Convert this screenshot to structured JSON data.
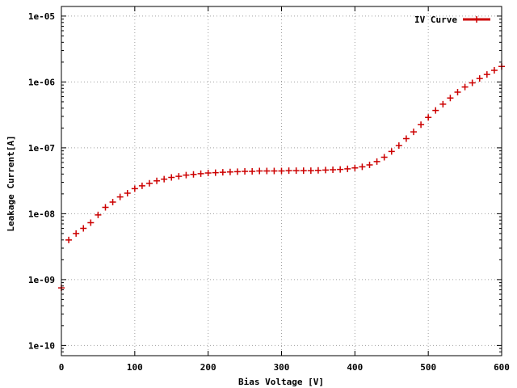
{
  "chart_data": {
    "type": "scatter",
    "title": "",
    "xlabel": "Bias Voltage [V]",
    "ylabel": "Leakage Current[A]",
    "xlim": [
      0,
      600
    ],
    "ylim": [
      7e-11,
      1.4e-05
    ],
    "yscale": "log",
    "grid": true,
    "legend_position": "top-right",
    "x_ticks": [
      0,
      100,
      200,
      300,
      400,
      500,
      600
    ],
    "x_tick_labels": [
      "0",
      "100",
      "200",
      "300",
      "400",
      "500",
      "600"
    ],
    "y_ticks": [
      1e-10,
      1e-09,
      1e-08,
      1e-07,
      1e-06,
      1e-05
    ],
    "y_tick_labels": [
      "1e-10",
      "1e-09",
      "1e-08",
      "1e-07",
      "1e-06",
      "1e-05"
    ],
    "series": [
      {
        "name": "IV Curve",
        "color": "#cc0000",
        "marker": "plus",
        "x": [
          0,
          10,
          20,
          30,
          40,
          50,
          60,
          70,
          80,
          90,
          100,
          110,
          120,
          130,
          140,
          150,
          160,
          170,
          180,
          190,
          200,
          210,
          220,
          230,
          240,
          250,
          260,
          270,
          280,
          290,
          300,
          310,
          320,
          330,
          340,
          350,
          360,
          370,
          380,
          390,
          400,
          410,
          420,
          430,
          440,
          450,
          460,
          470,
          480,
          490,
          500,
          510,
          520,
          530,
          540,
          550,
          560,
          570,
          580,
          590,
          600
        ],
        "y": [
          7.5e-10,
          4e-09,
          5e-09,
          6e-09,
          7.3e-09,
          9.6e-09,
          1.25e-08,
          1.5e-08,
          1.8e-08,
          2.05e-08,
          2.4e-08,
          2.65e-08,
          2.9e-08,
          3.15e-08,
          3.35e-08,
          3.55e-08,
          3.7e-08,
          3.85e-08,
          3.95e-08,
          4.05e-08,
          4.15e-08,
          4.2e-08,
          4.25e-08,
          4.3e-08,
          4.35e-08,
          4.4e-08,
          4.4e-08,
          4.45e-08,
          4.45e-08,
          4.45e-08,
          4.45e-08,
          4.5e-08,
          4.5e-08,
          4.5e-08,
          4.5e-08,
          4.55e-08,
          4.6e-08,
          4.65e-08,
          4.7e-08,
          4.8e-08,
          4.95e-08,
          5.15e-08,
          5.5e-08,
          6.2e-08,
          7.2e-08,
          8.8e-08,
          1.08e-07,
          1.38e-07,
          1.75e-07,
          2.25e-07,
          2.9e-07,
          3.7e-07,
          4.6e-07,
          5.7e-07,
          7e-07,
          8.4e-07,
          9.7e-07,
          1.13e-06,
          1.3e-06,
          1.5e-06,
          1.72e-06
        ]
      }
    ]
  }
}
